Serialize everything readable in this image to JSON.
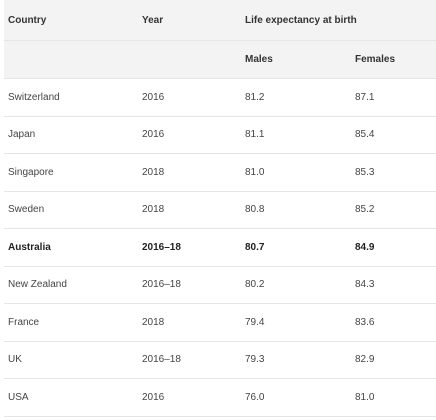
{
  "table": {
    "headers": {
      "country": "Country",
      "year": "Year",
      "group": "Life expectancy at birth",
      "males": "Males",
      "females": "Females"
    },
    "rows": [
      {
        "country": "Switzerland",
        "year": "2016",
        "males": "81.2",
        "females": "87.1",
        "bold": false
      },
      {
        "country": "Japan",
        "year": "2016",
        "males": "81.1",
        "females": "85.4",
        "bold": false
      },
      {
        "country": "Singapore",
        "year": "2018",
        "males": "81.0",
        "females": "85.3",
        "bold": false
      },
      {
        "country": "Sweden",
        "year": "2018",
        "males": "80.8",
        "females": "85.2",
        "bold": false
      },
      {
        "country": "Australia",
        "year": "2016–18",
        "males": "80.7",
        "females": "84.9",
        "bold": true
      },
      {
        "country": "New Zealand",
        "year": "2016–18",
        "males": "80.2",
        "females": "84.3",
        "bold": false
      },
      {
        "country": "France",
        "year": "2018",
        "males": "79.4",
        "females": "83.6",
        "bold": false
      },
      {
        "country": "UK",
        "year": "2016–18",
        "males": "79.3",
        "females": "82.9",
        "bold": false
      },
      {
        "country": "USA",
        "year": "2016",
        "males": "76.0",
        "females": "81.0",
        "bold": false
      }
    ]
  }
}
